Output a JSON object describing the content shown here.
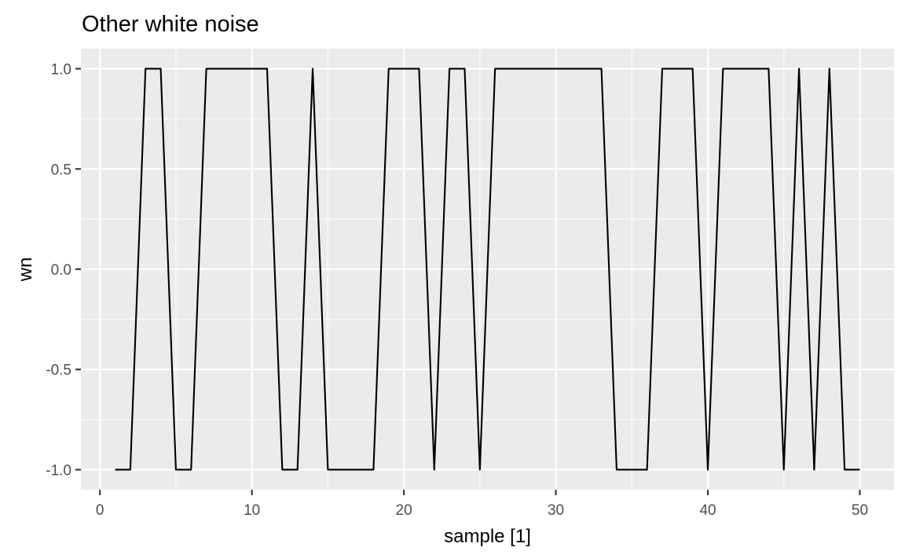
{
  "chart_data": {
    "type": "line",
    "title": "Other white noise",
    "xlabel": "sample [1]",
    "ylabel": "wn",
    "xlim": [
      -1.25,
      52.25
    ],
    "ylim": [
      -1.1,
      1.1
    ],
    "x_ticks": [
      0,
      10,
      20,
      30,
      40,
      50
    ],
    "x_tick_labels": [
      "0",
      "10",
      "20",
      "30",
      "40",
      "50"
    ],
    "y_ticks": [
      -1.0,
      -0.5,
      0.0,
      0.5,
      1.0
    ],
    "y_tick_labels": [
      "-1.0",
      "-0.5",
      "0.0",
      "0.5",
      "1.0"
    ],
    "grid": true,
    "legend": "none",
    "colors": {
      "panel": "#EBEBEB",
      "grid": "#FFFFFF",
      "line": "#000000"
    },
    "series": [
      {
        "x": [
          1,
          2,
          3,
          4,
          5,
          6,
          7,
          8,
          9,
          10,
          11,
          12,
          13,
          14,
          15,
          16,
          17,
          18,
          19,
          20,
          21,
          22,
          23,
          24,
          25,
          26,
          27,
          28,
          29,
          30,
          31,
          32,
          33,
          34,
          35,
          36,
          37,
          38,
          39,
          40,
          41,
          42,
          43,
          44,
          45,
          46,
          47,
          48,
          49,
          50
        ],
        "values": [
          -1,
          -1,
          1,
          1,
          -1,
          -1,
          1,
          1,
          1,
          1,
          1,
          -1,
          -1,
          1,
          -1,
          -1,
          -1,
          -1,
          1,
          1,
          1,
          -1,
          1,
          1,
          -1,
          1,
          1,
          1,
          1,
          1,
          1,
          1,
          1,
          -1,
          -1,
          -1,
          1,
          1,
          1,
          -1,
          1,
          1,
          1,
          1,
          -1,
          1,
          -1,
          1,
          -1,
          -1
        ]
      }
    ]
  }
}
